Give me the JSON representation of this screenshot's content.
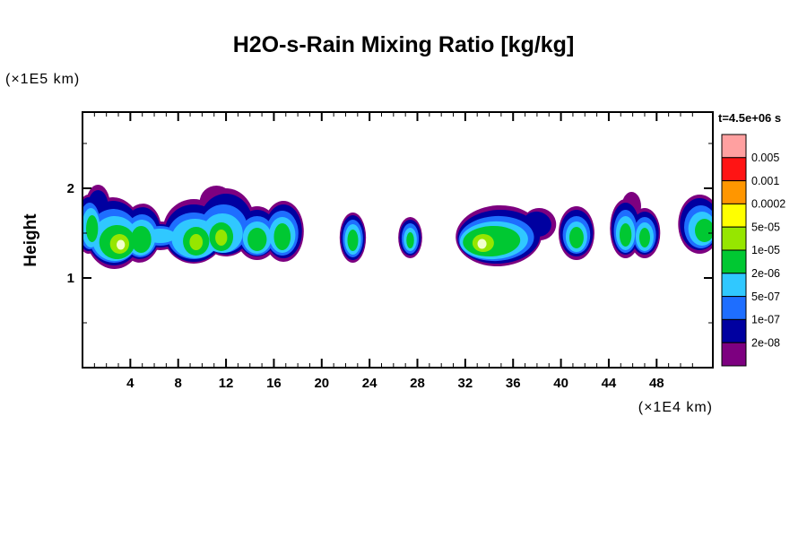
{
  "title": "H2O-s-Rain Mixing Ratio [kg/kg]",
  "axes": {
    "y_unit_label": "(×1E5 km)",
    "x_unit_label": "(×1E4 km)",
    "y_label": "Height",
    "x_ticks": [
      4,
      8,
      12,
      16,
      20,
      24,
      28,
      32,
      36,
      40,
      44,
      48
    ],
    "y_ticks": [
      1,
      2
    ]
  },
  "colorbar": {
    "time_label": "t=4.5e+06 s",
    "level_labels": [
      "0.005",
      "0.001",
      "0.0002",
      "5e-05",
      "1e-05",
      "2e-06",
      "5e-07",
      "1e-07",
      "2e-08"
    ],
    "cell_colors_top_to_bottom": [
      "#FFA0A0",
      "#FF1414",
      "#FF9600",
      "#FFFF00",
      "#96E600",
      "#00C832",
      "#30C8FF",
      "#1E6EFF",
      "#0000A0",
      "#7D0080"
    ]
  },
  "chart_data": {
    "type": "heatmap",
    "subtype": "filled_contour",
    "title": "H2O-s-Rain Mixing Ratio [kg/kg]",
    "time_annotation": "t=4.5e+06 s",
    "xlabel": "(×1E4 km)",
    "ylabel": "Height (×1E5 km)",
    "x_range": [
      0,
      52.7
    ],
    "y_range": [
      0,
      2.85
    ],
    "x_units": "1e4 km",
    "y_units": "1e5 km",
    "grid": false,
    "legend_position": "right-colorbar",
    "contour_levels": [
      "2e-08",
      "1e-07",
      "5e-07",
      "2e-06",
      "1e-05",
      "5e-05",
      "0.0002",
      "0.001",
      "0.005"
    ],
    "regions": [
      {
        "level": "2e-08",
        "color": "#7D0080",
        "ellipses": [
          [
            0.5,
            1.6,
            1.1,
            0.33,
            0
          ],
          [
            2.6,
            1.5,
            2.4,
            0.4,
            -4
          ],
          [
            4.9,
            1.5,
            1.7,
            0.33,
            6
          ],
          [
            1.3,
            1.82,
            1.0,
            0.22,
            0
          ],
          [
            6.5,
            1.47,
            1.7,
            0.16,
            0
          ],
          [
            9.3,
            1.52,
            2.6,
            0.36,
            0
          ],
          [
            12.0,
            1.62,
            2.4,
            0.38,
            0
          ],
          [
            11.2,
            1.85,
            1.4,
            0.18,
            0
          ],
          [
            14.6,
            1.5,
            1.8,
            0.3,
            0
          ],
          [
            16.8,
            1.52,
            1.7,
            0.34,
            0
          ],
          [
            22.6,
            1.45,
            1.1,
            0.28,
            0
          ],
          [
            27.4,
            1.45,
            1.0,
            0.23,
            0
          ],
          [
            34.8,
            1.47,
            3.6,
            0.34,
            -3
          ],
          [
            38.2,
            1.6,
            1.4,
            0.18,
            10
          ],
          [
            41.3,
            1.5,
            1.5,
            0.3,
            0
          ],
          [
            45.4,
            1.55,
            1.3,
            0.33,
            0
          ],
          [
            47.0,
            1.5,
            1.3,
            0.28,
            0
          ],
          [
            45.9,
            1.8,
            0.8,
            0.16,
            0
          ],
          [
            51.6,
            1.6,
            1.8,
            0.33,
            0
          ]
        ]
      },
      {
        "level": "1e-07",
        "color": "#0000A0",
        "ellipses": [
          [
            0.5,
            1.6,
            1.0,
            0.3,
            0
          ],
          [
            2.6,
            1.5,
            2.3,
            0.36,
            -4
          ],
          [
            4.9,
            1.5,
            1.6,
            0.29,
            6
          ],
          [
            1.3,
            1.8,
            0.85,
            0.18,
            0
          ],
          [
            6.5,
            1.47,
            1.6,
            0.13,
            0
          ],
          [
            9.3,
            1.5,
            2.45,
            0.32,
            0
          ],
          [
            12.0,
            1.6,
            2.25,
            0.34,
            0
          ],
          [
            14.6,
            1.5,
            1.65,
            0.26,
            0
          ],
          [
            16.8,
            1.52,
            1.55,
            0.3,
            0
          ],
          [
            22.6,
            1.45,
            1.0,
            0.25,
            0
          ],
          [
            27.4,
            1.45,
            0.9,
            0.2,
            0
          ],
          [
            34.8,
            1.46,
            3.45,
            0.3,
            -3
          ],
          [
            38.0,
            1.6,
            1.2,
            0.14,
            10
          ],
          [
            41.3,
            1.5,
            1.38,
            0.26,
            0
          ],
          [
            45.4,
            1.55,
            1.18,
            0.29,
            0
          ],
          [
            47.0,
            1.5,
            1.18,
            0.24,
            0
          ],
          [
            51.6,
            1.6,
            1.65,
            0.29,
            0
          ]
        ]
      },
      {
        "level": "5e-07",
        "color": "#1E6EFF",
        "ellipses": [
          [
            0.6,
            1.58,
            0.9,
            0.26,
            0
          ],
          [
            2.6,
            1.47,
            2.1,
            0.3,
            -4
          ],
          [
            4.9,
            1.47,
            1.4,
            0.24,
            6
          ],
          [
            6.5,
            1.47,
            1.45,
            0.11,
            0
          ],
          [
            9.3,
            1.47,
            2.2,
            0.26,
            0
          ],
          [
            11.8,
            1.55,
            2.0,
            0.27,
            0
          ],
          [
            14.6,
            1.47,
            1.45,
            0.22,
            0
          ],
          [
            16.7,
            1.5,
            1.35,
            0.25,
            0
          ],
          [
            22.6,
            1.44,
            0.85,
            0.21,
            0
          ],
          [
            27.4,
            1.44,
            0.72,
            0.17,
            0
          ],
          [
            34.6,
            1.44,
            3.15,
            0.25,
            -3
          ],
          [
            41.3,
            1.48,
            1.15,
            0.21,
            0
          ],
          [
            45.4,
            1.52,
            0.98,
            0.24,
            0
          ],
          [
            47.0,
            1.48,
            0.95,
            0.2,
            0
          ],
          [
            51.7,
            1.57,
            1.4,
            0.24,
            0
          ]
        ]
      },
      {
        "level": "2e-06",
        "color": "#30C8FF",
        "ellipses": [
          [
            0.7,
            1.56,
            0.75,
            0.22,
            0
          ],
          [
            2.7,
            1.44,
            1.9,
            0.25,
            -4
          ],
          [
            4.9,
            1.45,
            1.2,
            0.2,
            6
          ],
          [
            6.5,
            1.47,
            1.3,
            0.08,
            0
          ],
          [
            9.4,
            1.44,
            1.95,
            0.22,
            0
          ],
          [
            11.7,
            1.5,
            1.7,
            0.22,
            0
          ],
          [
            14.6,
            1.45,
            1.2,
            0.18,
            0
          ],
          [
            16.7,
            1.48,
            1.1,
            0.2,
            0
          ],
          [
            22.6,
            1.43,
            0.68,
            0.17,
            0
          ],
          [
            27.4,
            1.43,
            0.55,
            0.13,
            0
          ],
          [
            34.4,
            1.42,
            2.85,
            0.21,
            -3
          ],
          [
            41.3,
            1.46,
            0.9,
            0.17,
            0
          ],
          [
            45.4,
            1.5,
            0.8,
            0.19,
            0
          ],
          [
            47.0,
            1.46,
            0.75,
            0.16,
            0
          ],
          [
            51.8,
            1.55,
            1.15,
            0.19,
            0
          ]
        ]
      },
      {
        "level": "1e-05",
        "color": "#00C832",
        "ellipses": [
          [
            2.9,
            1.4,
            1.5,
            0.19,
            -4
          ],
          [
            4.9,
            1.43,
            0.85,
            0.15,
            0
          ],
          [
            0.8,
            1.55,
            0.5,
            0.15,
            0
          ],
          [
            9.5,
            1.41,
            1.1,
            0.16,
            0
          ],
          [
            11.6,
            1.46,
            1.0,
            0.16,
            0
          ],
          [
            14.6,
            1.43,
            0.8,
            0.13,
            0
          ],
          [
            16.7,
            1.46,
            0.7,
            0.15,
            0
          ],
          [
            22.6,
            1.42,
            0.45,
            0.12,
            0
          ],
          [
            27.4,
            1.42,
            0.32,
            0.09,
            0
          ],
          [
            34.2,
            1.41,
            2.4,
            0.17,
            -3
          ],
          [
            41.3,
            1.45,
            0.6,
            0.12,
            0
          ],
          [
            45.4,
            1.48,
            0.5,
            0.13,
            0
          ],
          [
            47.0,
            1.45,
            0.45,
            0.11,
            0
          ],
          [
            52.0,
            1.53,
            0.8,
            0.13,
            0
          ]
        ]
      },
      {
        "level": "5e-05",
        "color": "#96E600",
        "ellipses": [
          [
            3.1,
            1.38,
            0.8,
            0.11,
            0
          ],
          [
            9.5,
            1.4,
            0.55,
            0.09,
            0
          ],
          [
            11.6,
            1.45,
            0.5,
            0.09,
            0
          ],
          [
            33.5,
            1.39,
            0.9,
            0.1,
            0
          ]
        ]
      },
      {
        "level": "core",
        "color": "#F2FFCC",
        "ellipses": [
          [
            3.2,
            1.37,
            0.35,
            0.055,
            0
          ],
          [
            33.4,
            1.38,
            0.38,
            0.055,
            0
          ]
        ]
      }
    ]
  }
}
